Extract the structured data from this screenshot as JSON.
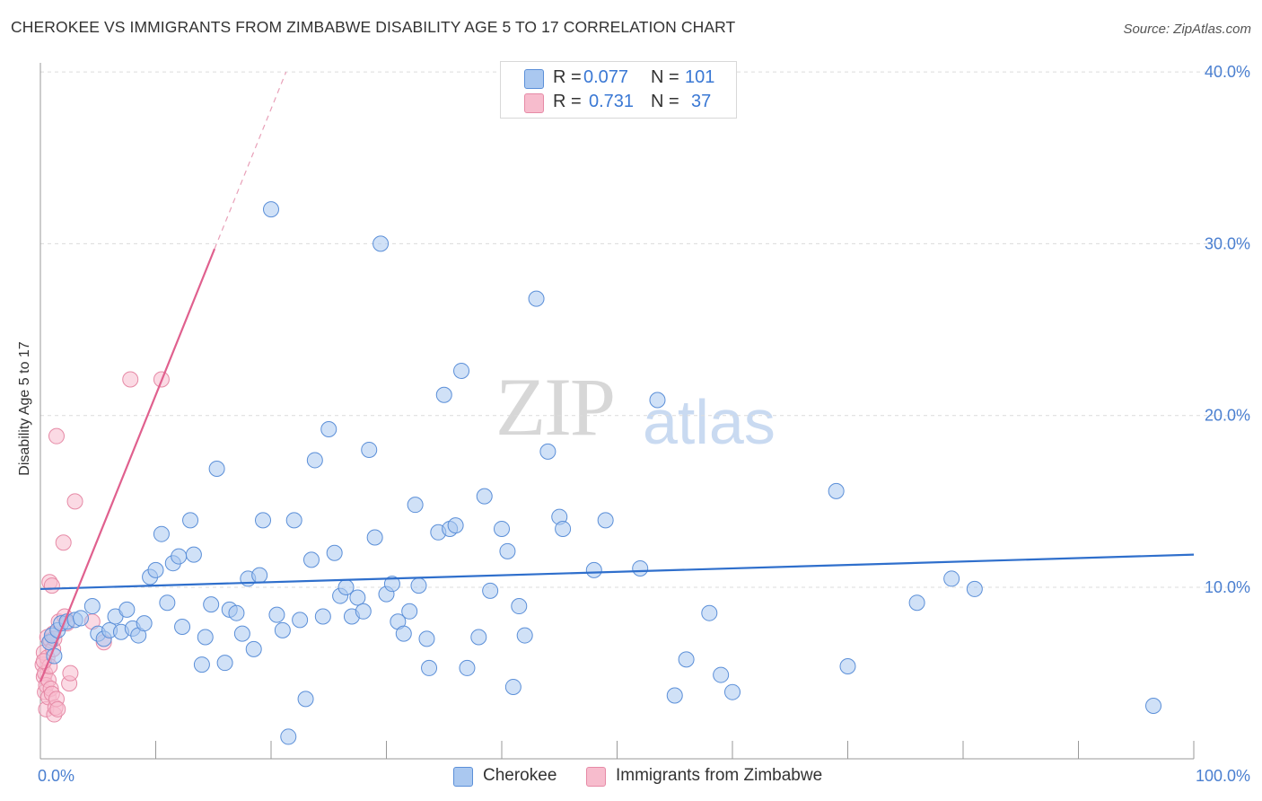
{
  "header": {
    "title": "CHEROKEE VS IMMIGRANTS FROM ZIMBABWE DISABILITY AGE 5 TO 17 CORRELATION CHART",
    "source": "Source: ZipAtlas.com"
  },
  "watermark": {
    "zip": "ZIP",
    "atlas": "atlas"
  },
  "legend_top": {
    "rows": [
      {
        "r_label": "R =",
        "r_value": "0.077",
        "n_label": "N =",
        "n_value": "101",
        "color": "#aac8f0",
        "border": "#5b8fd8"
      },
      {
        "r_label": "R =",
        "r_value": "0.731",
        "n_label": "N =",
        "n_value": "37",
        "color": "#f7bccd",
        "border": "#e68aa6"
      }
    ]
  },
  "legend_bottom": {
    "items": [
      {
        "label": "Cherokee",
        "color": "#aac8f0",
        "border": "#5b8fd8"
      },
      {
        "label": "Immigrants from Zimbabwe",
        "color": "#f7bccd",
        "border": "#e68aa6"
      }
    ]
  },
  "chart_data": {
    "type": "scatter",
    "title": "CHEROKEE VS IMMIGRANTS FROM ZIMBABWE DISABILITY AGE 5 TO 17 CORRELATION CHART",
    "xlabel": "",
    "ylabel": "Disability Age 5 to 17",
    "xlim": [
      0,
      100
    ],
    "ylim": [
      0,
      41
    ],
    "x_tick_labels": [
      "0.0%",
      "100.0%"
    ],
    "y_ticks": [
      10,
      20,
      30,
      40
    ],
    "y_tick_labels": [
      "10.0%",
      "20.0%",
      "30.0%",
      "40.0%"
    ],
    "grid": true,
    "series": [
      {
        "name": "Cherokee",
        "color": "#4a7fd0",
        "fill": "#aac8f0",
        "trend": {
          "x0": 0,
          "y0": 9.9,
          "x1": 100,
          "y1": 11.9
        },
        "points": [
          [
            0.8,
            6.8
          ],
          [
            1.0,
            7.2
          ],
          [
            1.5,
            7.5
          ],
          [
            1.8,
            7.9
          ],
          [
            2.3,
            8.0
          ],
          [
            3.0,
            8.1
          ],
          [
            3.5,
            8.2
          ],
          [
            4.5,
            8.9
          ],
          [
            5.0,
            7.3
          ],
          [
            5.5,
            7.0
          ],
          [
            6.0,
            7.5
          ],
          [
            6.5,
            8.3
          ],
          [
            7.0,
            7.4
          ],
          [
            7.5,
            8.7
          ],
          [
            8.0,
            7.6
          ],
          [
            8.5,
            7.2
          ],
          [
            9.0,
            7.9
          ],
          [
            9.5,
            10.6
          ],
          [
            10.0,
            11.0
          ],
          [
            10.5,
            13.1
          ],
          [
            11.0,
            9.1
          ],
          [
            11.5,
            11.4
          ],
          [
            12.0,
            11.8
          ],
          [
            12.3,
            7.7
          ],
          [
            13.0,
            13.9
          ],
          [
            13.3,
            11.9
          ],
          [
            14.0,
            5.5
          ],
          [
            14.3,
            7.1
          ],
          [
            14.8,
            9.0
          ],
          [
            15.3,
            16.9
          ],
          [
            16.0,
            5.6
          ],
          [
            16.4,
            8.7
          ],
          [
            17.0,
            8.5
          ],
          [
            17.5,
            7.3
          ],
          [
            18.0,
            10.5
          ],
          [
            18.5,
            6.4
          ],
          [
            19.0,
            10.7
          ],
          [
            19.3,
            13.9
          ],
          [
            20.0,
            32.0
          ],
          [
            20.5,
            8.4
          ],
          [
            21.0,
            7.5
          ],
          [
            21.5,
            1.3
          ],
          [
            22.0,
            13.9
          ],
          [
            22.5,
            8.1
          ],
          [
            23.0,
            3.5
          ],
          [
            23.5,
            11.6
          ],
          [
            23.8,
            17.4
          ],
          [
            24.5,
            8.3
          ],
          [
            25.0,
            19.2
          ],
          [
            25.5,
            12.0
          ],
          [
            26.0,
            9.5
          ],
          [
            26.5,
            10.0
          ],
          [
            27.0,
            8.3
          ],
          [
            27.5,
            9.4
          ],
          [
            28.0,
            8.6
          ],
          [
            28.5,
            18.0
          ],
          [
            29.0,
            12.9
          ],
          [
            29.5,
            30.0
          ],
          [
            30.0,
            9.6
          ],
          [
            30.5,
            10.2
          ],
          [
            31.0,
            8.0
          ],
          [
            31.5,
            7.3
          ],
          [
            32.0,
            8.6
          ],
          [
            32.5,
            14.8
          ],
          [
            32.8,
            10.1
          ],
          [
            33.5,
            7.0
          ],
          [
            33.7,
            5.3
          ],
          [
            34.5,
            13.2
          ],
          [
            35.0,
            21.2
          ],
          [
            35.5,
            13.4
          ],
          [
            36.0,
            13.6
          ],
          [
            36.5,
            22.6
          ],
          [
            37.0,
            5.3
          ],
          [
            38.0,
            7.1
          ],
          [
            38.5,
            15.3
          ],
          [
            39.0,
            9.8
          ],
          [
            40.0,
            13.4
          ],
          [
            40.5,
            12.1
          ],
          [
            41.0,
            4.2
          ],
          [
            41.5,
            8.9
          ],
          [
            42.0,
            7.2
          ],
          [
            43.0,
            26.8
          ],
          [
            44.0,
            17.9
          ],
          [
            45.0,
            14.1
          ],
          [
            45.3,
            13.4
          ],
          [
            48.0,
            11.0
          ],
          [
            49.0,
            13.9
          ],
          [
            52.0,
            11.1
          ],
          [
            53.5,
            20.9
          ],
          [
            55.0,
            3.7
          ],
          [
            56.0,
            5.8
          ],
          [
            58.0,
            8.5
          ],
          [
            59.0,
            4.9
          ],
          [
            60.0,
            3.9
          ],
          [
            69.0,
            15.6
          ],
          [
            70.0,
            5.4
          ],
          [
            76.0,
            9.1
          ],
          [
            79.0,
            10.5
          ],
          [
            81.0,
            9.9
          ],
          [
            96.5,
            3.1
          ],
          [
            1.2,
            6.0
          ]
        ]
      },
      {
        "name": "Immigrants from Zimbabwe",
        "color": "#e0608e",
        "fill": "#f7bccd",
        "trend": {
          "x0": 0,
          "y0": 4.5,
          "x1": 15.1,
          "y1": 29.7,
          "dash_to_x": 21.3,
          "dash_to_y": 40.0
        },
        "points": [
          [
            0.2,
            5.5
          ],
          [
            0.3,
            4.8
          ],
          [
            0.3,
            6.2
          ],
          [
            0.4,
            5.0
          ],
          [
            0.4,
            3.9
          ],
          [
            0.5,
            2.9
          ],
          [
            0.5,
            4.3
          ],
          [
            0.6,
            7.1
          ],
          [
            0.6,
            5.9
          ],
          [
            0.7,
            3.6
          ],
          [
            0.7,
            4.6
          ],
          [
            0.8,
            5.4
          ],
          [
            0.8,
            10.3
          ],
          [
            0.9,
            6.9
          ],
          [
            0.9,
            4.1
          ],
          [
            1.0,
            10.1
          ],
          [
            1.0,
            3.8
          ],
          [
            1.1,
            7.3
          ],
          [
            1.1,
            6.4
          ],
          [
            1.2,
            2.6
          ],
          [
            1.3,
            3.0
          ],
          [
            1.4,
            3.5
          ],
          [
            1.4,
            18.8
          ],
          [
            1.5,
            2.9
          ],
          [
            1.6,
            8.0
          ],
          [
            2.0,
            12.6
          ],
          [
            2.1,
            8.3
          ],
          [
            2.3,
            7.9
          ],
          [
            2.5,
            4.4
          ],
          [
            2.6,
            5.0
          ],
          [
            3.0,
            15.0
          ],
          [
            4.5,
            8.0
          ],
          [
            5.5,
            6.8
          ],
          [
            7.8,
            22.1
          ],
          [
            10.5,
            22.1
          ],
          [
            0.3,
            5.7
          ],
          [
            1.2,
            7.0
          ]
        ]
      }
    ]
  }
}
